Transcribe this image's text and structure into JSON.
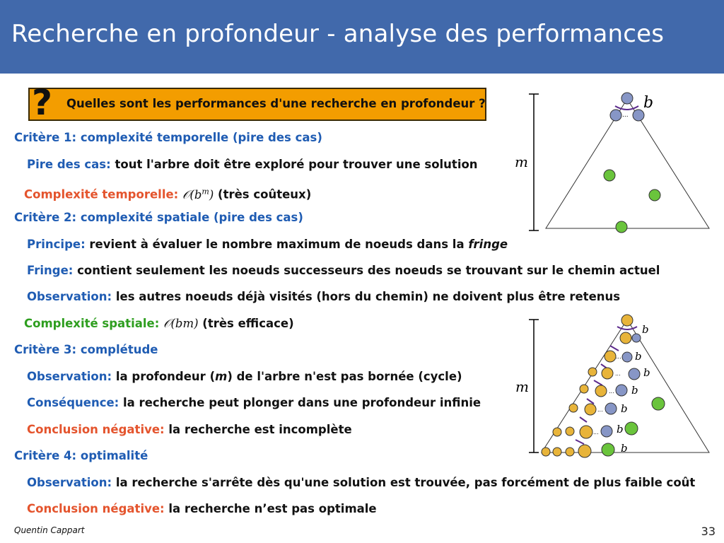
{
  "slide": {
    "title": "Recherche en profondeur - analyse des performances",
    "question": "Quelles sont les performances d'une recherche en profondeur ?",
    "question_mark": "?",
    "author": "Quentin Cappart",
    "page": "33"
  },
  "lines": [
    {
      "label": "Critère 1: complexité temporelle (pire des cas)"
    },
    {
      "label": "Pire des cas:",
      "text": " tout l'arbre doit être exploré pour trouver une solution"
    },
    {
      "label": "Complexité temporelle:",
      "math": "𝒪(b",
      "sup": "m",
      "math_end": ")",
      "text": " (très coûteux)"
    },
    {
      "label": "Critère 2: complexité spatiale (pire des cas)"
    },
    {
      "label": "Principe:",
      "text": " revient à évaluer le nombre maximum de noeuds dans la ",
      "em": "fringe"
    },
    {
      "label": "Fringe:",
      "text": " contient seulement les noeuds successeurs des noeuds se trouvant sur le chemin actuel"
    },
    {
      "label": "Observation:",
      "text": " les autres noeuds déjà visités (hors du chemin) ne doivent plus être retenus"
    },
    {
      "label": "Complexité spatiale:",
      "math": "𝒪(bm)",
      "text": " (très efficace)"
    },
    {
      "label": "Critère 3: complétude"
    },
    {
      "label": "Observation:",
      "text": " la profondeur (",
      "em": "m",
      "text2": ") de l'arbre n'est pas bornée (cycle)"
    },
    {
      "label": "Conséquence:",
      "text": " la recherche peut plonger dans une profondeur infinie"
    },
    {
      "label": "Conclusion négative:",
      "text": " la recherche est incomplète"
    },
    {
      "label": "Critère 4: optimalité"
    },
    {
      "label": "Observation:",
      "text": " la recherche s'arrête dès qu'une solution est trouvée, pas forcément de plus faible coût"
    },
    {
      "label": "Conclusion négative:",
      "text": " la recherche n’est pas optimale"
    }
  ],
  "diagram_top": {
    "depth_label": "m",
    "branch_label": "b",
    "ellipsis": "..."
  },
  "diagram_bottom": {
    "depth_label": "m",
    "branch_labels": [
      "b",
      "b",
      "b",
      "b",
      "b",
      "b",
      "b"
    ],
    "ellipsis": "..."
  },
  "colors": {
    "header": "#4169ab",
    "question_box": "#f39d00",
    "node_blue": "#8796c6",
    "node_gold": "#e8b43a",
    "node_green": "#6ac43c",
    "brace": "#5c2a8c"
  }
}
